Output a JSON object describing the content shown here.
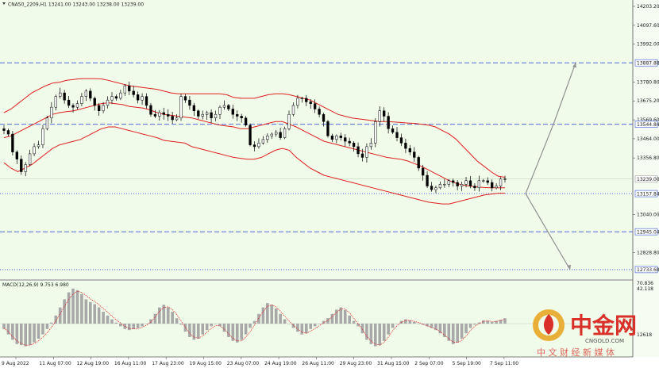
{
  "header": {
    "symbol_line": "CNA50_2209,H1  13241.00 13243.00 13238.00 13239.00",
    "macd_line": "MACD(12,26,9) 9.753 6.980"
  },
  "price_axis": {
    "labels": [
      "14203.20",
      "14097.60",
      "13992.00",
      "13780.80",
      "13675.20",
      "13569.60",
      "13464.00",
      "13356.80",
      "13040.00",
      "12828.80",
      "12618"
    ],
    "macd_labels": [
      "70.836",
      "42.118"
    ]
  },
  "levels": [
    {
      "value": "13887.88",
      "style": "dashed"
    },
    {
      "value": "13544.84",
      "style": "dashed"
    },
    {
      "value": "13157.84",
      "style": "dotted"
    },
    {
      "value": "12945.04",
      "style": "dashed"
    },
    {
      "value": "12733.68",
      "style": "dotted"
    }
  ],
  "current_price": "13239.00",
  "time_axis": {
    "labels": [
      "9 Aug 2022",
      "11 Aug 07:00",
      "12 Aug 19:00",
      "16 Aug 11:00",
      "17 Aug 23:00",
      "19 Aug 15:00",
      "23 Aug 07:00",
      "24 Aug 19:00",
      "26 Aug 11:00",
      "29 Aug 23:00",
      "31 Aug 15:00",
      "2 Sep 07:00",
      "5 Sep 19:00",
      "7 Sep 11:00"
    ]
  },
  "watermark": {
    "brand_cn": "中金网",
    "url": "CNGOLD.COM",
    "tagline": "中 文 财 经 新 媒 体"
  },
  "colors": {
    "background": "#f0fbe9",
    "candles": "#000000",
    "bands": "#e02020",
    "level_lines": "#3a55d6",
    "histogram": "#a8a8a8",
    "signal": "#e02020",
    "arrows": "#909090",
    "brand_red": "#d9302a",
    "brand_gold": "#e8a21a"
  },
  "chart_data": {
    "type": "candlestick",
    "symbol": "CNA50_2209",
    "timeframe": "H1",
    "ohlc_last": {
      "open": 13241.0,
      "high": 13243.0,
      "low": 13238.0,
      "close": 13239.0
    },
    "ylim": [
      12618,
      14203.2
    ],
    "close": [
      13510,
      13490,
      13390,
      13350,
      13280,
      13320,
      13380,
      13420,
      13430,
      13520,
      13580,
      13640,
      13700,
      13720,
      13680,
      13650,
      13640,
      13660,
      13700,
      13730,
      13690,
      13650,
      13620,
      13650,
      13680,
      13700,
      13690,
      13720,
      13760,
      13730,
      13710,
      13680,
      13700,
      13650,
      13600,
      13590,
      13610,
      13600,
      13590,
      13570,
      13580,
      13700,
      13680,
      13650,
      13620,
      13590,
      13600,
      13610,
      13580,
      13600,
      13640,
      13650,
      13630,
      13600,
      13590,
      13580,
      13540,
      13430,
      13420,
      13440,
      13460,
      13480,
      13490,
      13500,
      13470,
      13520,
      13600,
      13650,
      13690,
      13690,
      13670,
      13660,
      13630,
      13600,
      13560,
      13480,
      13460,
      13480,
      13470,
      13450,
      13440,
      13420,
      13380,
      13360,
      13420,
      13440,
      13560,
      13620,
      13590,
      13520,
      13500,
      13470,
      13440,
      13410,
      13390,
      13360,
      13300,
      13260,
      13200,
      13180,
      13190,
      13210,
      13210,
      13230,
      13220,
      13200,
      13210,
      13230,
      13200,
      13190,
      13230,
      13230,
      13220,
      13190,
      13200,
      13240,
      13239
    ],
    "bands": {
      "upper": [
        13610,
        13630,
        13660,
        13690,
        13720,
        13740,
        13760,
        13775,
        13780,
        13790,
        13795,
        13800,
        13800,
        13800,
        13798,
        13790,
        13780,
        13770,
        13760,
        13755,
        13750,
        13745,
        13740,
        13730,
        13720,
        13715,
        13715,
        13715,
        13715,
        13715,
        13715,
        13715,
        13710,
        13695,
        13690,
        13690,
        13690,
        13700,
        13710,
        13715,
        13715,
        13710,
        13700,
        13690,
        13680,
        13660,
        13640,
        13620,
        13600,
        13590,
        13580,
        13575,
        13570,
        13565,
        13560,
        13560,
        13558,
        13555,
        13552,
        13550,
        13545,
        13540,
        13530,
        13510,
        13490,
        13460,
        13420,
        13380,
        13340,
        13310,
        13280,
        13255,
        13249
      ],
      "middle": [
        13470,
        13480,
        13500,
        13520,
        13540,
        13560,
        13580,
        13600,
        13610,
        13615,
        13620,
        13630,
        13640,
        13650,
        13660,
        13665,
        13660,
        13655,
        13645,
        13640,
        13635,
        13625,
        13610,
        13600,
        13595,
        13590,
        13585,
        13580,
        13570,
        13560,
        13550,
        13540,
        13535,
        13530,
        13520,
        13520,
        13530,
        13540,
        13550,
        13560,
        13560,
        13545,
        13530,
        13510,
        13490,
        13470,
        13450,
        13440,
        13430,
        13420,
        13410,
        13400,
        13390,
        13380,
        13370,
        13360,
        13355,
        13350,
        13340,
        13325,
        13310,
        13290,
        13270,
        13250,
        13230,
        13215,
        13205,
        13200,
        13195,
        13192,
        13190,
        13190,
        13190
      ],
      "lower": [
        13330,
        13300,
        13280,
        13300,
        13320,
        13350,
        13380,
        13410,
        13430,
        13440,
        13450,
        13460,
        13480,
        13500,
        13520,
        13530,
        13530,
        13520,
        13510,
        13500,
        13490,
        13480,
        13470,
        13455,
        13450,
        13445,
        13440,
        13420,
        13410,
        13400,
        13390,
        13380,
        13370,
        13360,
        13355,
        13350,
        13350,
        13360,
        13380,
        13400,
        13410,
        13400,
        13360,
        13330,
        13300,
        13280,
        13260,
        13250,
        13240,
        13230,
        13220,
        13210,
        13200,
        13190,
        13180,
        13170,
        13160,
        13150,
        13140,
        13130,
        13120,
        13110,
        13105,
        13100,
        13100,
        13110,
        13120,
        13130,
        13140,
        13150,
        13155,
        13160,
        13160
      ]
    },
    "projection": {
      "up": [
        13887.88
      ],
      "down": [
        12733.68
      ],
      "pivot": 13157.84
    },
    "macd": {
      "histogram": [
        -10,
        -20,
        -30,
        -38,
        -40,
        -42,
        -40,
        -35,
        -28,
        -20,
        -10,
        2,
        15,
        30,
        45,
        58,
        65,
        62,
        55,
        45,
        40,
        36,
        30,
        22,
        15,
        8,
        2,
        -5,
        -10,
        -12,
        -10,
        -8,
        -5,
        0,
        8,
        18,
        30,
        35,
        30,
        22,
        10,
        -2,
        -15,
        -25,
        -30,
        -28,
        -20,
        -12,
        -5,
        0,
        -5,
        -15,
        -25,
        -32,
        -35,
        -30,
        -20,
        -8,
        5,
        18,
        30,
        38,
        35,
        28,
        18,
        8,
        0,
        -8,
        -15,
        -20,
        -18,
        -10,
        -5,
        0,
        5,
        10,
        18,
        26,
        30,
        25,
        15,
        5,
        -5,
        -18,
        -30,
        -38,
        -42,
        -40,
        -32,
        -20,
        -8,
        0,
        5,
        8,
        6,
        3,
        0,
        -2,
        -5,
        -8,
        -12,
        -18,
        -25,
        -32,
        -38,
        -35,
        -28,
        -18,
        -8,
        -2,
        2,
        6,
        5,
        3,
        5,
        7,
        10
      ],
      "signal": [
        -8,
        -15,
        -24,
        -32,
        -37,
        -40,
        -40,
        -37,
        -32,
        -25,
        -17,
        -7,
        5,
        18,
        32,
        45,
        55,
        60,
        58,
        52,
        46,
        41,
        35,
        28,
        21,
        14,
        7,
        1,
        -5,
        -9,
        -10,
        -9,
        -7,
        -3,
        3,
        12,
        23,
        30,
        31,
        26,
        17,
        5,
        -7,
        -18,
        -25,
        -27,
        -23,
        -16,
        -9,
        -4,
        -4,
        -10,
        -19,
        -27,
        -32,
        -32,
        -25,
        -15,
        -3,
        10,
        22,
        32,
        35,
        31,
        23,
        14,
        5,
        -3,
        -10,
        -16,
        -18,
        -14,
        -9,
        -4,
        1,
        6,
        13,
        21,
        27,
        27,
        20,
        10,
        0,
        -11,
        -23,
        -32,
        -38,
        -40,
        -35,
        -25,
        -13,
        -4,
        2,
        6,
        6,
        4,
        2,
        -1,
        -4,
        -7,
        -10,
        -15,
        -21,
        -28,
        -34,
        -35,
        -31,
        -23,
        -13,
        -5,
        0,
        4,
        5,
        4,
        4,
        6,
        8
      ]
    }
  }
}
